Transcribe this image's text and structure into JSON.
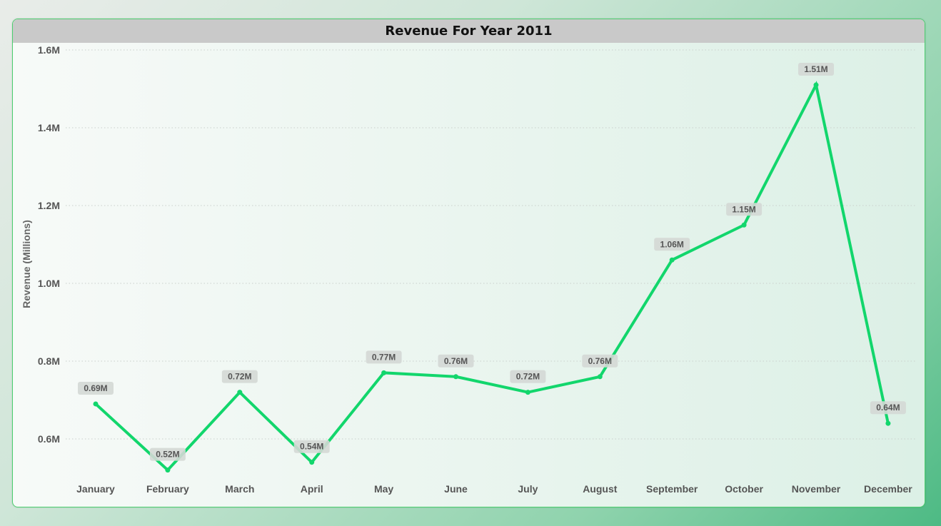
{
  "chart_data": {
    "type": "line",
    "title": "Revenue For Year 2011",
    "ylabel": "Revenue (Millions)",
    "xlabel": "",
    "ylim": [
      0.5,
      1.6
    ],
    "yticks": [
      0.6,
      0.8,
      1.0,
      1.2,
      1.4,
      1.6
    ],
    "ytick_labels": [
      "0.6M",
      "0.8M",
      "1.0M",
      "1.2M",
      "1.4M",
      "1.6M"
    ],
    "grid": "horizontal dotted",
    "categories": [
      "January",
      "February",
      "March",
      "April",
      "May",
      "June",
      "July",
      "August",
      "September",
      "October",
      "November",
      "December"
    ],
    "values": [
      0.69,
      0.52,
      0.72,
      0.54,
      0.77,
      0.76,
      0.72,
      0.76,
      1.06,
      1.15,
      1.51,
      0.64
    ],
    "data_labels": [
      "0.69M",
      "0.52M",
      "0.72M",
      "0.54M",
      "0.77M",
      "0.76M",
      "0.72M",
      "0.76M",
      "1.06M",
      "1.15M",
      "1.51M",
      "0.64M"
    ],
    "line_color": "#12d66c",
    "label_bg_color": "#d4d8d5"
  }
}
